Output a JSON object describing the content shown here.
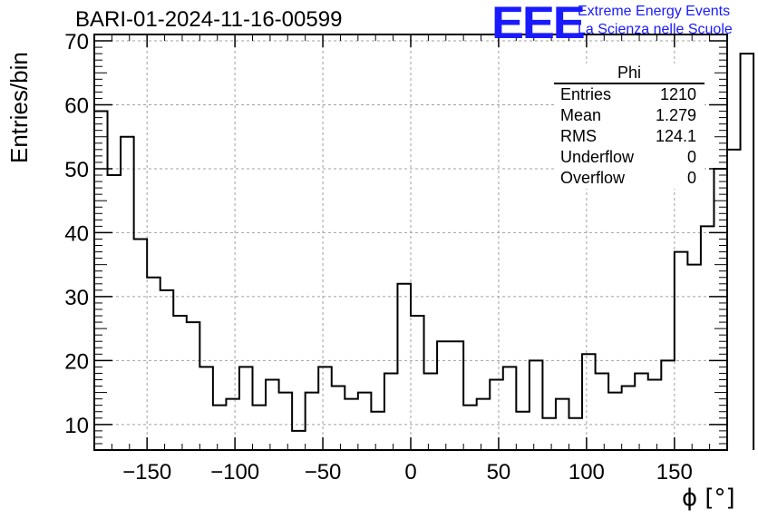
{
  "header": {
    "title": "BARI-01-2024-11-16-00599",
    "logo_text": "EEE",
    "logo_line1": "Extreme Energy Events",
    "logo_line2": "La Scienza nelle Scuole"
  },
  "stats": {
    "name": "Phi",
    "rows": [
      {
        "label": "Entries",
        "value": "1210"
      },
      {
        "label": "Mean",
        "value": "1.279"
      },
      {
        "label": "RMS",
        "value": "124.1"
      },
      {
        "label": "Underflow",
        "value": "0"
      },
      {
        "label": "Overflow",
        "value": "0"
      }
    ]
  },
  "colors": {
    "line": "#000000",
    "grid": "#a0a0a0",
    "logo": "#1a1aff"
  },
  "chart_data": {
    "type": "bar",
    "style": "step histogram",
    "xlabel": "ϕ [°]",
    "ylabel": "Entries/bin",
    "xlim": [
      -180,
      180
    ],
    "ylim": [
      6,
      71
    ],
    "grid": true,
    "xticks": [
      -150,
      -100,
      -50,
      0,
      50,
      100,
      150
    ],
    "yticks": [
      10,
      20,
      30,
      40,
      50,
      60,
      70
    ],
    "bin_width": 7.5,
    "values": [
      59,
      49,
      55,
      39,
      33,
      31,
      27,
      26,
      19,
      13,
      14,
      19,
      13,
      17,
      15,
      9,
      15,
      19,
      16,
      14,
      15,
      12,
      18,
      32,
      27,
      18,
      23,
      23,
      13,
      14,
      17,
      19,
      12,
      20,
      11,
      14,
      11,
      21,
      18,
      15,
      16,
      18,
      17,
      20,
      37,
      35,
      41,
      50,
      53,
      68
    ]
  }
}
